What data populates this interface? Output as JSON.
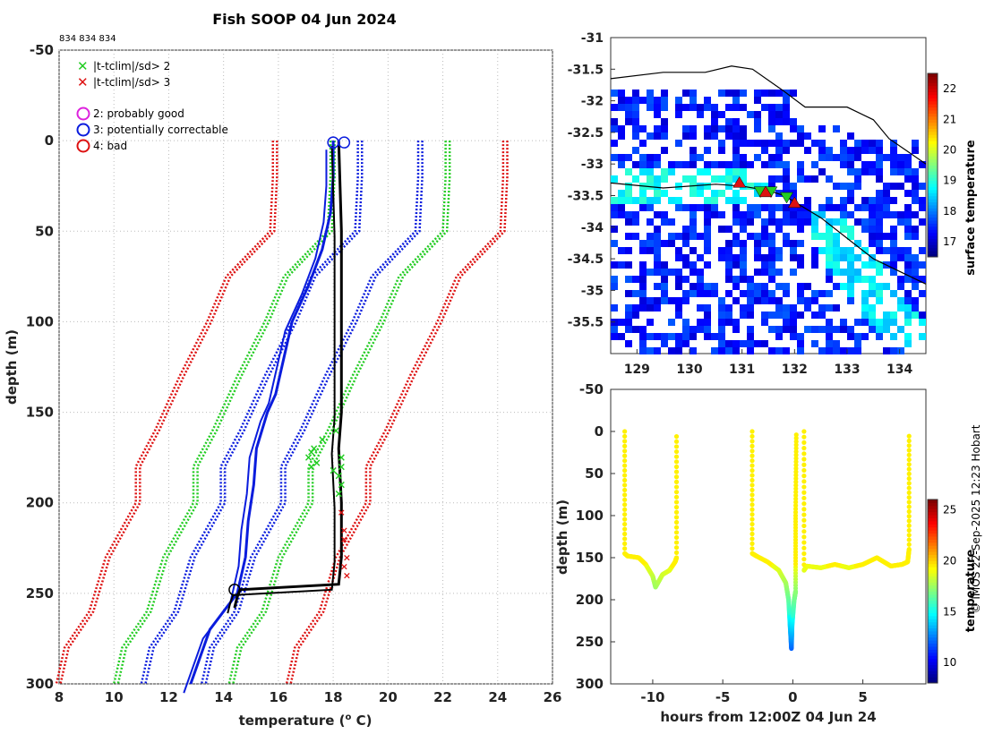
{
  "figure": {
    "title": "Fish SOOP 04 Jun 2024",
    "ids": "834 834 834",
    "credit": "© IMOS 22-Sep-2025 12:23 Hobart"
  },
  "colors": {
    "green": "#22cc22",
    "red": "#dd1111",
    "blue": "#0a1cdd",
    "black": "#000000",
    "magenta": "#dd22dd",
    "grid": "#bbbbbb"
  },
  "chart_data": [
    {
      "id": "profile",
      "type": "line",
      "xlabel": "temperature (° C)",
      "ylabel": "depth (m)",
      "xlim": [
        8,
        26
      ],
      "ylim": [
        -50,
        300
      ],
      "y_reversed": true,
      "xticks": [
        8,
        10,
        12,
        14,
        16,
        18,
        20,
        22,
        24,
        26
      ],
      "yticks": [
        -50,
        0,
        50,
        100,
        150,
        200,
        250,
        300
      ],
      "grid": true,
      "legend": {
        "flag_criteria": [
          {
            "symbol": "×",
            "label": "|t-tclim|/sd> 2",
            "color": "#22cc22"
          },
          {
            "symbol": "×",
            "label": "|t-tclim|/sd> 3",
            "color": "#dd1111"
          }
        ],
        "quality_flags": [
          {
            "label": "2: probably good",
            "color": "#dd22dd"
          },
          {
            "label": "3: potentially correctable",
            "color": "#0a1cdd"
          },
          {
            "label": "4: bad",
            "color": "#dd1111"
          }
        ]
      },
      "climatology": {
        "depth": [
          0,
          20,
          50,
          75,
          100,
          130,
          160,
          180,
          200,
          230,
          260,
          280,
          300
        ],
        "mean": [
          20,
          20,
          19.9,
          18.3,
          17.6,
          16.6,
          15.7,
          15.0,
          15.0,
          13.9,
          13.3,
          12.4,
          12.1
        ],
        "sd_offsets": [
          2.1,
          4.2
        ],
        "mean_line_color": "blue",
        "sd2_color": "green",
        "sd3_color": "red",
        "min_offset": 1.1
      },
      "profile_black": {
        "depth": [
          0,
          50,
          100,
          150,
          170,
          200,
          230,
          245,
          248,
          252,
          258
        ],
        "temp": [
          18.2,
          18.3,
          18.3,
          18.3,
          18.2,
          18.3,
          18.3,
          18.2,
          14.6,
          14.5,
          14.4
        ]
      },
      "profile_blue": {
        "depth": [
          0,
          20,
          40,
          60,
          80,
          100,
          120,
          140,
          150,
          170,
          190,
          210,
          230,
          250,
          270,
          300
        ],
        "temp": [
          18.0,
          18.0,
          17.9,
          17.6,
          17.1,
          16.5,
          16.2,
          15.9,
          15.6,
          15.2,
          15.1,
          14.9,
          14.8,
          14.5,
          13.5,
          12.8
        ]
      },
      "flagged_points": {
        "depth": [
          160,
          165,
          170,
          172,
          175,
          178,
          180,
          182,
          185,
          190,
          195,
          175,
          180
        ],
        "temp": [
          18.1,
          17.6,
          17.3,
          17.2,
          17.1,
          17.4,
          17.2,
          18.0,
          18.2,
          18.3,
          18.2,
          18.3,
          18.3
        ]
      },
      "red_flagged": {
        "depth": [
          205,
          215,
          220,
          230,
          235,
          240
        ],
        "temp": [
          18.3,
          18.4,
          18.4,
          18.5,
          18.4,
          18.5
        ]
      },
      "markers": {
        "circles": [
          [
            18.0,
            1
          ],
          [
            18.4,
            1
          ],
          [
            14.4,
            248
          ]
        ]
      }
    },
    {
      "id": "map",
      "type": "heatmap",
      "xlim": [
        128.5,
        134.5
      ],
      "ylim": [
        -36,
        -31
      ],
      "xticks": [
        129,
        130,
        131,
        132,
        133,
        134
      ],
      "yticks": [
        -31,
        -31.5,
        -32,
        -32.5,
        -33,
        -33.5,
        -34,
        -34.5,
        -35,
        -35.5
      ],
      "colorbar": {
        "label": "surface temperature",
        "ticks": [
          17,
          18,
          19,
          20,
          21,
          22
        ],
        "range": [
          16.5,
          22.5
        ]
      },
      "track": {
        "lon": [
          128.5,
          129.5,
          130.5,
          131,
          131.5,
          131.8,
          132.0,
          132.5,
          133.5,
          134.5
        ],
        "lat": [
          -33.3,
          -33.38,
          -33.32,
          -33.35,
          -33.42,
          -33.5,
          -33.6,
          -33.85,
          -34.5,
          -34.9
        ]
      },
      "triangles": [
        {
          "lon": 130.95,
          "lat": -33.3,
          "color": "#dd1111",
          "dir": "up"
        },
        {
          "lon": 131.35,
          "lat": -33.43,
          "color": "#22cc22",
          "dir": "down"
        },
        {
          "lon": 131.55,
          "lat": -33.43,
          "color": "#22cc22",
          "dir": "down"
        },
        {
          "lon": 131.45,
          "lat": -33.45,
          "color": "#dd1111",
          "dir": "up"
        },
        {
          "lon": 131.85,
          "lat": -33.52,
          "color": "#22cc22",
          "dir": "down"
        },
        {
          "lon": 132.0,
          "lat": -33.62,
          "color": "#dd1111",
          "dir": "up"
        }
      ]
    },
    {
      "id": "timeseries",
      "type": "scatter",
      "xlabel": "hours from 12:00Z 04 Jun 24",
      "ylabel": "depth (m)",
      "xlim": [
        -13,
        9.5
      ],
      "ylim": [
        -50,
        300
      ],
      "y_reversed": true,
      "xticks": [
        -10,
        -5,
        0,
        5
      ],
      "yticks": [
        -50,
        0,
        50,
        100,
        150,
        200,
        250,
        300
      ],
      "colorbar": {
        "label": "temperature",
        "ticks": [
          10,
          15,
          20,
          25
        ],
        "range": [
          8,
          26
        ]
      },
      "segments": [
        {
          "t": [
            -12.0,
            -12.0,
            -11.8,
            -11.0,
            -10.5,
            -10.0,
            -9.8,
            -9.3,
            -8.8,
            -8.4,
            -8.3,
            -8.3
          ],
          "d": [
            0,
            145,
            148,
            150,
            158,
            172,
            185,
            170,
            165,
            155,
            150,
            0
          ]
        },
        {
          "t": [
            -2.9,
            -2.9,
            -2.6,
            -1.8,
            -1.0,
            -0.5,
            -0.3,
            -0.2,
            -0.1,
            -0.05,
            0.1,
            0.2,
            0.2,
            0.25
          ],
          "d": [
            0,
            145,
            148,
            155,
            165,
            180,
            200,
            230,
            258,
            230,
            200,
            190,
            100,
            0
          ]
        },
        {
          "t": [
            0.8,
            0.8,
            1.0,
            2.0,
            3.0,
            4.0,
            5.0,
            6.0,
            7.0,
            7.8,
            8.2,
            8.3,
            8.3
          ],
          "d": [
            0,
            165,
            160,
            162,
            158,
            162,
            158,
            150,
            160,
            158,
            155,
            140,
            0
          ]
        }
      ]
    }
  ]
}
